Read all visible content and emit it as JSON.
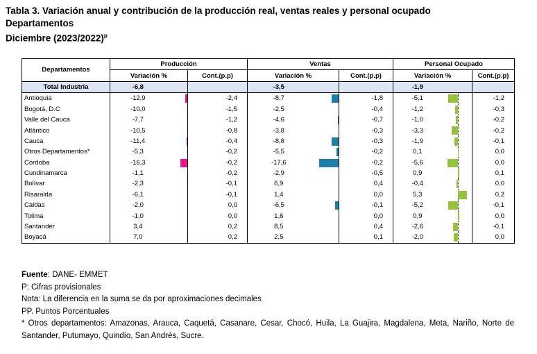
{
  "title_line1": "Tabla 3. Variación anual y contribución de la producción real, ventas reales y personal ocupado",
  "title_line2": "Departamentos",
  "title_line3": "Diciembre (2023/2022)",
  "title_sup": "p",
  "headers": {
    "departamentos": "Departamentos",
    "produccion": "Producción",
    "ventas": "Ventas",
    "personal": "Personal Ocupado",
    "variacion": "Variación %",
    "cont": "Cont.(p.p)"
  },
  "total": {
    "label": "Total Industria",
    "prod_var": "-6,8",
    "ventas_var": "-3,5",
    "personal_var": "-1,9"
  },
  "colors": {
    "produccion": "#e8188a",
    "ventas": "#1d7ea6",
    "personal": "#95c23d",
    "total_bg": "#dde4f3"
  },
  "rows": [
    {
      "dep": "Antioquia",
      "pv": "-12,9",
      "pc": "-2,4",
      "vv": "-8,7",
      "vc": "-1,8",
      "ov": "-5,1",
      "oc": "-1,2"
    },
    {
      "dep": "Bogotá, D.C",
      "pv": "-10,0",
      "pc": "-1,5",
      "vv": "-2,5",
      "vc": "-0,4",
      "ov": "-1,2",
      "oc": "-0,3"
    },
    {
      "dep": "Valle del Cauca",
      "pv": "-7,7",
      "pc": "-1,2",
      "vv": "-4,6",
      "vc": "-0,7",
      "ov": "-1,0",
      "oc": "-0,2"
    },
    {
      "dep": "Atlántico",
      "pv": "-10,5",
      "pc": "-0,8",
      "vv": "-3,8",
      "vc": "-0,3",
      "ov": "-3,3",
      "oc": "-0,2"
    },
    {
      "dep": "Cauca",
      "pv": "-11,4",
      "pc": "-0,4",
      "vv": "-8,8",
      "vc": "-0,3",
      "ov": "-1,9",
      "oc": "-0,1"
    },
    {
      "dep": "Otros Departamentos*",
      "pv": "-5,3",
      "pc": "-0,2",
      "vv": "-5,5",
      "vc": "-0,2",
      "ov": "0,1",
      "oc": "0,0"
    },
    {
      "dep": "Córdoba",
      "pv": "-16,3",
      "pc": "-0,2",
      "vv": "-17,6",
      "vc": "-0,2",
      "ov": "-5,6",
      "oc": "0,0"
    },
    {
      "dep": "Cundinamarca",
      "pv": "-1,1",
      "pc": "-0,2",
      "vv": "-2,9",
      "vc": "-0,5",
      "ov": "0,9",
      "oc": "0,1"
    },
    {
      "dep": "Bolívar",
      "pv": "-2,3",
      "pc": "-0,1",
      "vv": "6,9",
      "vc": "0,4",
      "ov": "-0,4",
      "oc": "0,0"
    },
    {
      "dep": "Risaralda",
      "pv": "-6,1",
      "pc": "-0,1",
      "vv": "1,4",
      "vc": "0,0",
      "ov": "5,3",
      "oc": "0,2"
    },
    {
      "dep": "Caldas",
      "pv": "-2,0",
      "pc": "0,0",
      "vv": "-6,5",
      "vc": "-0,1",
      "ov": "-5,2",
      "oc": "-0,1"
    },
    {
      "dep": "Tolima",
      "pv": "-1,0",
      "pc": "0,0",
      "vv": "1,6",
      "vc": "0,0",
      "ov": "0,9",
      "oc": "0,0"
    },
    {
      "dep": "Santander",
      "pv": "3,4",
      "pc": "0,2",
      "vv": "8,5",
      "vc": "0,4",
      "ov": "-2,6",
      "oc": "-0,1"
    },
    {
      "dep": "Boyacá",
      "pv": "7,0",
      "pc": "0,2",
      "vv": "2,5",
      "vc": "0,1",
      "ov": "-2,0",
      "oc": "0,0"
    }
  ],
  "notes": {
    "fuente_label": "Fuente",
    "fuente_text": ": DANE- EMMET",
    "p": "P: Cifras provisionales",
    "nota": "Nota: La diferencia en la suma se da por aproximaciones decimales",
    "pp": "PP. Puntos Porcentuales",
    "otros": "* Otros departamentos: Amazonas, Arauca, Caquetá, Casanare, Cesar, Chocó, Huila, La Guajira, Magdalena, Meta, Nariño, Norte de Santander, Putumayo, Quindío, San Andrés, Sucre."
  }
}
